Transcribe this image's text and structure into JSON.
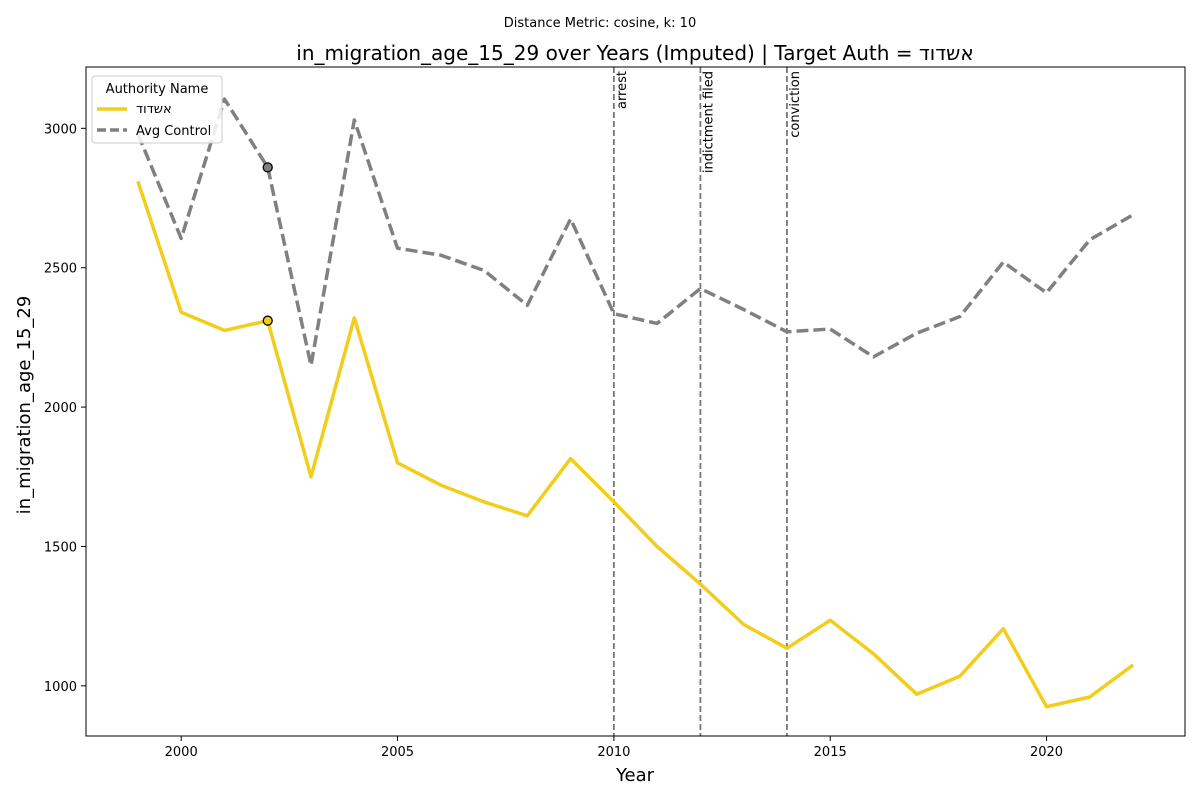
{
  "chart_data": {
    "type": "line",
    "suptitle": "Distance Metric: cosine, k: 10",
    "title": "in_migration_age_15_29 over Years (Imputed) | Target Auth = אשדוד",
    "xlabel": "Year",
    "ylabel": "in_migration_age_15_29",
    "xlim": [
      1997.8,
      2023.2
    ],
    "ylim": [
      820,
      3220
    ],
    "xticks": [
      2000,
      2005,
      2010,
      2015,
      2020
    ],
    "yticks": [
      1000,
      1500,
      2000,
      2500,
      3000
    ],
    "grid": false,
    "legend": {
      "title": "Authority Name",
      "placement": "top-left"
    },
    "series": [
      {
        "name": "אשדוד",
        "style": "solid",
        "color": "#f2cd1c",
        "x": [
          1999,
          2000,
          2001,
          2002,
          2003,
          2004,
          2005,
          2006,
          2007,
          2008,
          2009,
          2010,
          2011,
          2012,
          2013,
          2014,
          2015,
          2016,
          2017,
          2018,
          2019,
          2020,
          2021,
          2022
        ],
        "values": [
          2810,
          2340,
          2275,
          2310,
          1750,
          2320,
          1800,
          1720,
          1660,
          1610,
          1815,
          1660,
          1500,
          1365,
          1220,
          1135,
          1235,
          1115,
          970,
          1035,
          1205,
          925,
          960,
          1075
        ],
        "marker": {
          "x": 2002,
          "y": 2310
        }
      },
      {
        "name": "Avg Control",
        "style": "dashed",
        "color": "#808080",
        "x": [
          1999,
          2000,
          2001,
          2002,
          2003,
          2004,
          2005,
          2006,
          2007,
          2008,
          2009,
          2010,
          2011,
          2012,
          2013,
          2014,
          2015,
          2016,
          2017,
          2018,
          2019,
          2020,
          2021,
          2022
        ],
        "values": [
          2980,
          2605,
          3105,
          2860,
          2150,
          3030,
          2570,
          2545,
          2490,
          2365,
          2675,
          2335,
          2300,
          2425,
          2350,
          2270,
          2280,
          2180,
          2265,
          2325,
          2520,
          2410,
          2600,
          2690
        ],
        "marker": {
          "x": 2002,
          "y": 2860
        }
      }
    ],
    "events": [
      {
        "x": 2010,
        "label": "arrest"
      },
      {
        "x": 2012,
        "label": "indictment filed"
      },
      {
        "x": 2014,
        "label": "conviction"
      }
    ]
  }
}
